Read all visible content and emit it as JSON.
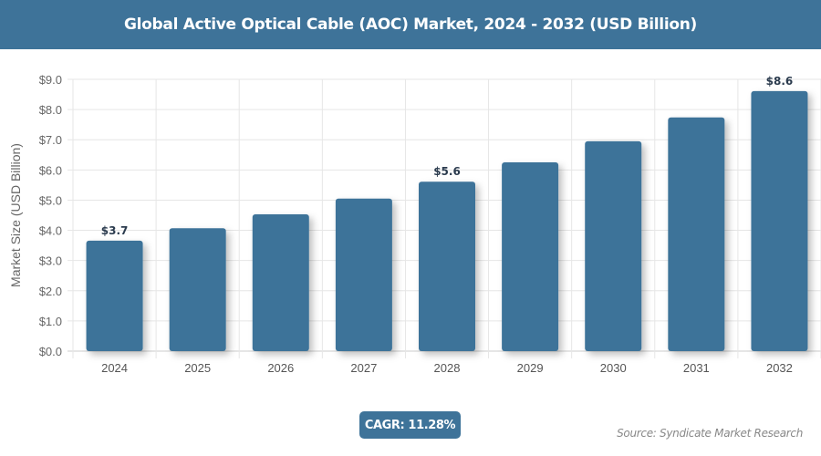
{
  "header": {
    "title": "Global Active Optical Cable (AOC) Market, 2024 - 2032 (USD Billion)"
  },
  "chart_data": {
    "type": "bar",
    "title": "Global Active Optical Cable (AOC) Market, 2024 - 2032 (USD Billion)",
    "xlabel": "",
    "ylabel": "Market Size (USD Billion)",
    "categories": [
      "2024",
      "2025",
      "2026",
      "2027",
      "2028",
      "2029",
      "2030",
      "2031",
      "2032"
    ],
    "values": [
      3.66,
      4.07,
      4.53,
      5.05,
      5.61,
      6.25,
      6.95,
      7.74,
      8.61
    ],
    "data_labels": {
      "2024": "$3.7",
      "2028": "$5.6",
      "2032": "$8.6"
    },
    "ylim": [
      0,
      9
    ],
    "yticks": [
      "$0.0",
      "$1.0",
      "$2.0",
      "$3.0",
      "$4.0",
      "$5.0",
      "$6.0",
      "$7.0",
      "$8.0",
      "$9.0"
    ],
    "grid": true,
    "bar_color": "#3e7399"
  },
  "footer": {
    "cagr": "CAGR: 11.28%",
    "source": "Source: Syndicate Market Research"
  }
}
